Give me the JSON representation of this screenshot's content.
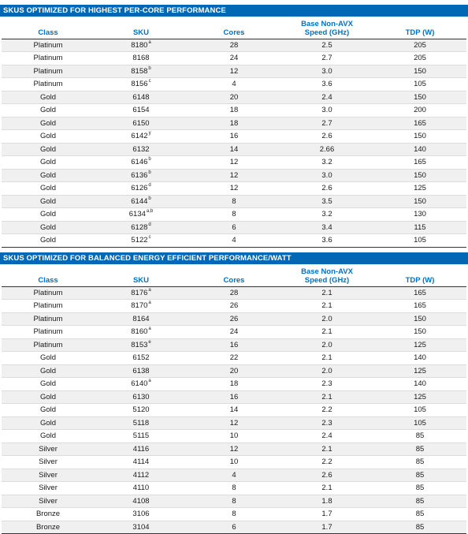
{
  "columns": [
    "Class",
    "SKU",
    "Cores",
    "Base Non-AVX Speed (GHz)",
    "TDP (W)"
  ],
  "tables": [
    {
      "title": "SKUS OPTIMIZED FOR HIGHEST PER-CORE PERFORMANCE",
      "rows": [
        {
          "class": "Platinum",
          "sku": "8180",
          "sup": "a",
          "cores": "28",
          "speed": "2.5",
          "tdp": "205"
        },
        {
          "class": "Platinum",
          "sku": "8168",
          "sup": "",
          "cores": "24",
          "speed": "2.7",
          "tdp": "205"
        },
        {
          "class": "Platinum",
          "sku": "8158",
          "sup": "b",
          "cores": "12",
          "speed": "3.0",
          "tdp": "150"
        },
        {
          "class": "Platinum",
          "sku": "8156",
          "sup": "c",
          "cores": "4",
          "speed": "3.6",
          "tdp": "105"
        },
        {
          "class": "Gold",
          "sku": "6148",
          "sup": "",
          "cores": "20",
          "speed": "2.4",
          "tdp": "150"
        },
        {
          "class": "Gold",
          "sku": "6154",
          "sup": "",
          "cores": "18",
          "speed": "3.0",
          "tdp": "200"
        },
        {
          "class": "Gold",
          "sku": "6150",
          "sup": "",
          "cores": "18",
          "speed": "2.7",
          "tdp": "165"
        },
        {
          "class": "Gold",
          "sku": "6142",
          "sup": "y",
          "cores": "16",
          "speed": "2.6",
          "tdp": "150"
        },
        {
          "class": "Gold",
          "sku": "6132",
          "sup": "",
          "cores": "14",
          "speed": "2.66",
          "tdp": "140"
        },
        {
          "class": "Gold",
          "sku": "6146",
          "sup": "b",
          "cores": "12",
          "speed": "3.2",
          "tdp": "165"
        },
        {
          "class": "Gold",
          "sku": "6136",
          "sup": "b",
          "cores": "12",
          "speed": "3.0",
          "tdp": "150"
        },
        {
          "class": "Gold",
          "sku": "6126",
          "sup": "d",
          "cores": "12",
          "speed": "2.6",
          "tdp": "125"
        },
        {
          "class": "Gold",
          "sku": "6144",
          "sup": "b",
          "cores": "8",
          "speed": "3.5",
          "tdp": "150"
        },
        {
          "class": "Gold",
          "sku": "6134",
          "sup": "a,b",
          "cores": "8",
          "speed": "3.2",
          "tdp": "130"
        },
        {
          "class": "Gold",
          "sku": "6128",
          "sup": "d",
          "cores": "6",
          "speed": "3.4",
          "tdp": "115"
        },
        {
          "class": "Gold",
          "sku": "5122",
          "sup": "c",
          "cores": "4",
          "speed": "3.6",
          "tdp": "105"
        }
      ]
    },
    {
      "title": "SKUS OPTIMIZED FOR BALANCED ENERGY EFFICIENT PERFORMANCE/WATT",
      "rows": [
        {
          "class": "Platinum",
          "sku": "8176",
          "sup": "a",
          "cores": "28",
          "speed": "2.1",
          "tdp": "165"
        },
        {
          "class": "Platinum",
          "sku": "8170",
          "sup": "a",
          "cores": "26",
          "speed": "2.1",
          "tdp": "165"
        },
        {
          "class": "Platinum",
          "sku": "8164",
          "sup": "",
          "cores": "26",
          "speed": "2.0",
          "tdp": "150"
        },
        {
          "class": "Platinum",
          "sku": "8160",
          "sup": "a",
          "cores": "24",
          "speed": "2.1",
          "tdp": "150"
        },
        {
          "class": "Platinum",
          "sku": "8153",
          "sup": "e",
          "cores": "16",
          "speed": "2.0",
          "tdp": "125"
        },
        {
          "class": "Gold",
          "sku": "6152",
          "sup": "",
          "cores": "22",
          "speed": "2.1",
          "tdp": "140"
        },
        {
          "class": "Gold",
          "sku": "6138",
          "sup": "",
          "cores": "20",
          "speed": "2.0",
          "tdp": "125"
        },
        {
          "class": "Gold",
          "sku": "6140",
          "sup": "a",
          "cores": "18",
          "speed": "2.3",
          "tdp": "140"
        },
        {
          "class": "Gold",
          "sku": "6130",
          "sup": "",
          "cores": "16",
          "speed": "2.1",
          "tdp": "125"
        },
        {
          "class": "Gold",
          "sku": "5120",
          "sup": "",
          "cores": "14",
          "speed": "2.2",
          "tdp": "105"
        },
        {
          "class": "Gold",
          "sku": "5118",
          "sup": "",
          "cores": "12",
          "speed": "2.3",
          "tdp": "105"
        },
        {
          "class": "Gold",
          "sku": "5115",
          "sup": "",
          "cores": "10",
          "speed": "2.4",
          "tdp": "85"
        },
        {
          "class": "Silver",
          "sku": "4116",
          "sup": "",
          "cores": "12",
          "speed": "2.1",
          "tdp": "85"
        },
        {
          "class": "Silver",
          "sku": "4114",
          "sup": "",
          "cores": "10",
          "speed": "2.2",
          "tdp": "85"
        },
        {
          "class": "Silver",
          "sku": "4112",
          "sup": "",
          "cores": "4",
          "speed": "2.6",
          "tdp": "85"
        },
        {
          "class": "Silver",
          "sku": "4110",
          "sup": "",
          "cores": "8",
          "speed": "2.1",
          "tdp": "85"
        },
        {
          "class": "Silver",
          "sku": "4108",
          "sup": "",
          "cores": "8",
          "speed": "1.8",
          "tdp": "85"
        },
        {
          "class": "Bronze",
          "sku": "3106",
          "sup": "",
          "cores": "8",
          "speed": "1.7",
          "tdp": "85"
        },
        {
          "class": "Bronze",
          "sku": "3104",
          "sup": "",
          "cores": "6",
          "speed": "1.7",
          "tdp": "85"
        }
      ]
    }
  ],
  "colors": {
    "header_bar": "#0068b5",
    "header_text": "#0071c5",
    "stripe": "#f0f0f0"
  }
}
